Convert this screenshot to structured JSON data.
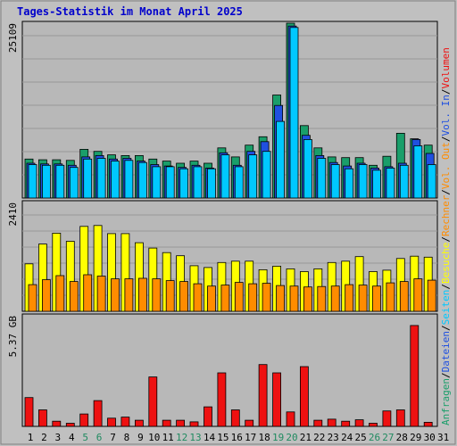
{
  "chart_data": {
    "type": "bar",
    "title": "Tages-Statistik im Monat April 2025",
    "colors": {
      "background": "#c0c0c0",
      "plot_bg": "#b8b8b8",
      "grid": "#999999",
      "title": "#0000cc",
      "anfragen": "#1a9e6a",
      "dateien": "#2050e0",
      "seiten": "#00c8ff",
      "besuche": "#ffff00",
      "rechner": "#ff8c00",
      "volumen": "#ee1111",
      "weekend_label": "#208a60"
    },
    "x_labels": [
      "1",
      "2",
      "3",
      "4",
      "5",
      "6",
      "7",
      "8",
      "9",
      "10",
      "11",
      "12",
      "13",
      "14",
      "15",
      "16",
      "17",
      "18",
      "19",
      "20",
      "21",
      "22",
      "23",
      "24",
      "25",
      "26",
      "27",
      "28",
      "29",
      "30",
      "31"
    ],
    "weekend_days": [
      5,
      6,
      12,
      13,
      19,
      20,
      26,
      27
    ],
    "panels": [
      {
        "name": "hits",
        "scale_label": "25109",
        "ymax": 25109,
        "series": [
          {
            "key": "anfragen",
            "values": [
              5600,
              5500,
              5500,
              5400,
              7000,
              6700,
              6200,
              6100,
              6100,
              5600,
              5300,
              5000,
              5300,
              5000,
              7200,
              5900,
              7600,
              8800,
              14800,
              25109,
              10400,
              7200,
              5900,
              5800,
              5800,
              4700,
              6000,
              9300,
              8500,
              7600,
              0
            ]
          },
          {
            "key": "dateien",
            "values": [
              5000,
              4900,
              4900,
              4700,
              5900,
              6100,
              5600,
              5700,
              5300,
              4800,
              4600,
              4400,
              4700,
              4300,
              6500,
              4700,
              6700,
              8100,
              13300,
              24700,
              9000,
              6100,
              5100,
              4600,
              5000,
              4300,
              4500,
              5000,
              8400,
              6400,
              0
            ]
          },
          {
            "key": "seiten",
            "values": [
              4800,
              4700,
              4700,
              4400,
              5600,
              5700,
              5300,
              5400,
              5100,
              4500,
              4500,
              4200,
              4500,
              4200,
              6200,
              4500,
              6200,
              6700,
              11000,
              24500,
              8400,
              5700,
              4800,
              4200,
              4800,
              4000,
              4300,
              4700,
              7500,
              4800,
              0
            ]
          }
        ]
      },
      {
        "name": "visits",
        "scale_label": "2410",
        "ymax": 2410,
        "series": [
          {
            "key": "besuche",
            "values": [
              1050,
              1490,
              1730,
              1550,
              1880,
              1900,
              1720,
              1720,
              1520,
              1400,
              1300,
              1230,
              1010,
              970,
              1080,
              1110,
              1110,
              920,
              1000,
              940,
              880,
              940,
              1080,
              1110,
              1210,
              880,
              910,
              1170,
              1220,
              1200,
              0
            ]
          },
          {
            "key": "rechner",
            "values": [
              590,
              700,
              790,
              660,
              810,
              780,
              720,
              720,
              730,
              720,
              680,
              660,
              610,
              560,
              580,
              640,
              610,
              620,
              570,
              560,
              540,
              550,
              560,
              590,
              580,
              560,
              630,
              660,
              720,
              690,
              0
            ]
          }
        ]
      },
      {
        "name": "volume",
        "scale_label": "5.37 GB",
        "ymax": 5.37,
        "series": [
          {
            "key": "volumen",
            "values": [
              1.4,
              0.8,
              0.25,
              0.15,
              0.6,
              1.25,
              0.4,
              0.45,
              0.3,
              2.4,
              0.3,
              0.3,
              0.22,
              0.95,
              2.6,
              0.8,
              0.3,
              3.0,
              2.6,
              0.7,
              2.9,
              0.3,
              0.35,
              0.25,
              0.32,
              0.15,
              0.75,
              0.8,
              4.9,
              0.2,
              0
            ]
          }
        ]
      }
    ],
    "legend_right": [
      {
        "text": "Anfragen",
        "key": "anfragen"
      },
      {
        "text": "Dateien",
        "key": "dateien"
      },
      {
        "text": "Seiten",
        "key": "seiten"
      },
      {
        "text": "Besuche",
        "key": "besuche"
      },
      {
        "text": "Rechner",
        "key": "rechner"
      },
      {
        "text": "Vol. Out",
        "key": "rechner"
      },
      {
        "text": "Vol. In",
        "key": "dateien"
      },
      {
        "text": "Volumen",
        "key": "volumen"
      }
    ],
    "legend_separator": "/"
  }
}
